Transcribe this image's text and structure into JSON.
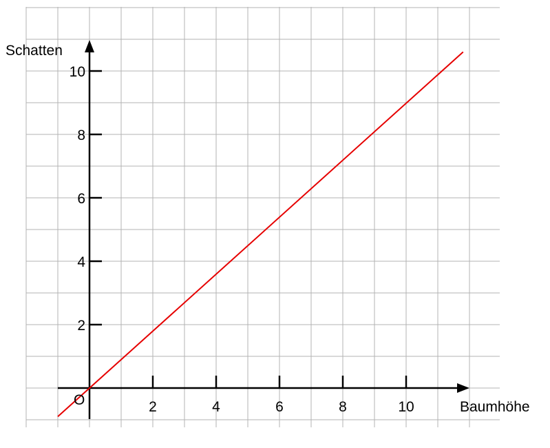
{
  "chart_data": {
    "type": "line",
    "xlabel": "Baumhöhe",
    "ylabel": "Schatten",
    "origin_label": "O",
    "x_ticks": [
      2,
      4,
      6,
      8,
      10
    ],
    "y_ticks": [
      2,
      4,
      6,
      8,
      10
    ],
    "x_tick_labels": [
      "2",
      "4",
      "6",
      "8",
      "10"
    ],
    "y_tick_labels": [
      "2",
      "4",
      "6",
      "8",
      "10"
    ],
    "xlim": [
      -1,
      12
    ],
    "ylim": [
      -1,
      11
    ],
    "grid": true,
    "grid_step": 1,
    "series": [
      {
        "x": [
          -1,
          11.8
        ],
        "y": [
          -0.9,
          10.6
        ]
      }
    ],
    "colors": {
      "line": "#e60000",
      "grid": "#b3b3b3",
      "axes": "#000000"
    }
  }
}
